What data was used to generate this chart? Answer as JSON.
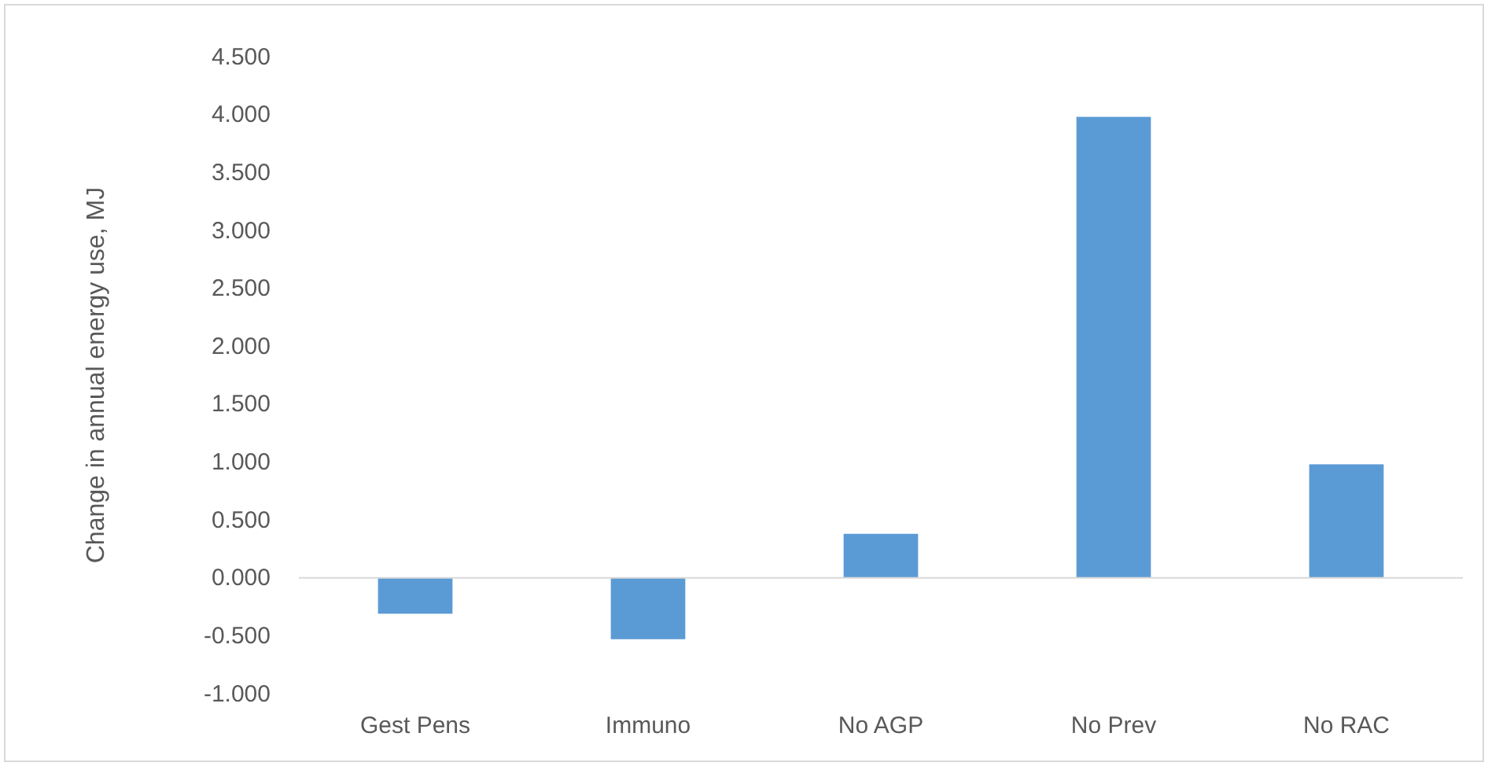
{
  "chart_data": {
    "type": "bar",
    "ylabel": "Change in annual energy use, MJ",
    "categories": [
      "Gest Pens",
      "Immuno",
      "No AGP",
      "No Prev",
      "No RAC"
    ],
    "values": [
      -0.31,
      -0.53,
      0.38,
      3.98,
      0.98
    ],
    "color": "#5b9bd5",
    "ylim": [
      -1,
      4.5
    ],
    "yticks": [
      {
        "value": -1,
        "label": "-1.000"
      },
      {
        "value": -0.5,
        "label": "-0.500"
      },
      {
        "value": 0,
        "label": "0.000"
      },
      {
        "value": 0.5,
        "label": "0.500"
      },
      {
        "value": 1,
        "label": "1.000"
      },
      {
        "value": 1.5,
        "label": "1.500"
      },
      {
        "value": 2,
        "label": "2.000"
      },
      {
        "value": 2.5,
        "label": "2.500"
      },
      {
        "value": 3,
        "label": "3.000"
      },
      {
        "value": 3.5,
        "label": "3.500"
      },
      {
        "value": 4,
        "label": "4.000"
      },
      {
        "value": 4.5,
        "label": "4.500"
      }
    ]
  }
}
